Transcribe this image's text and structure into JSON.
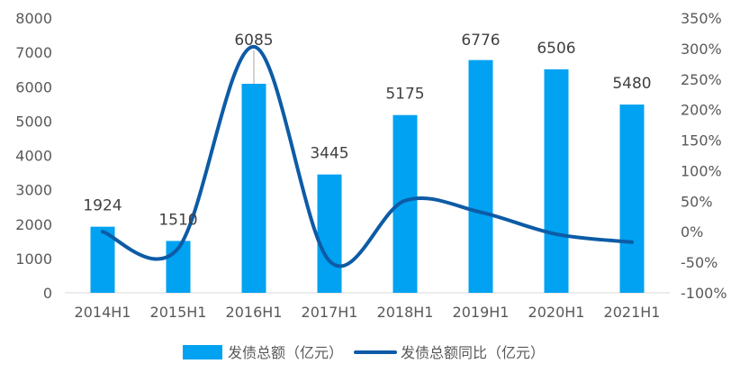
{
  "chart_data": {
    "type": "bar+line",
    "categories": [
      "2014H1",
      "2015H1",
      "2016H1",
      "2017H1",
      "2018H1",
      "2019H1",
      "2020H1",
      "2021H1"
    ],
    "series": [
      {
        "name": "发债总额（亿元）",
        "type": "bar",
        "axis": "left",
        "color": "#00A2F1",
        "values": [
          1924,
          1510,
          6085,
          3445,
          5175,
          6776,
          6506,
          5480
        ],
        "data_labels": [
          "1924",
          "1510",
          "6085",
          "3445",
          "5175",
          "6776",
          "6506",
          "5480"
        ]
      },
      {
        "name": "发债总额同比（亿元）",
        "type": "line",
        "axis": "right",
        "color": "#0D5BA6",
        "values": [
          0,
          -27,
          303,
          -48,
          51,
          32,
          -4,
          -17
        ]
      }
    ],
    "y_left": {
      "min": 0,
      "max": 8000,
      "step": 1000,
      "tick_labels": [
        "0",
        "1000",
        "2000",
        "3000",
        "4000",
        "5000",
        "6000",
        "7000",
        "8000"
      ]
    },
    "y_right": {
      "min": -100,
      "max": 350,
      "step": 50,
      "tick_labels": [
        "-100%",
        "-50%",
        "0%",
        "50%",
        "100%",
        "150%",
        "200%",
        "250%",
        "300%",
        "350%"
      ]
    },
    "legend": {
      "placement": "bottom"
    },
    "grid": false
  }
}
